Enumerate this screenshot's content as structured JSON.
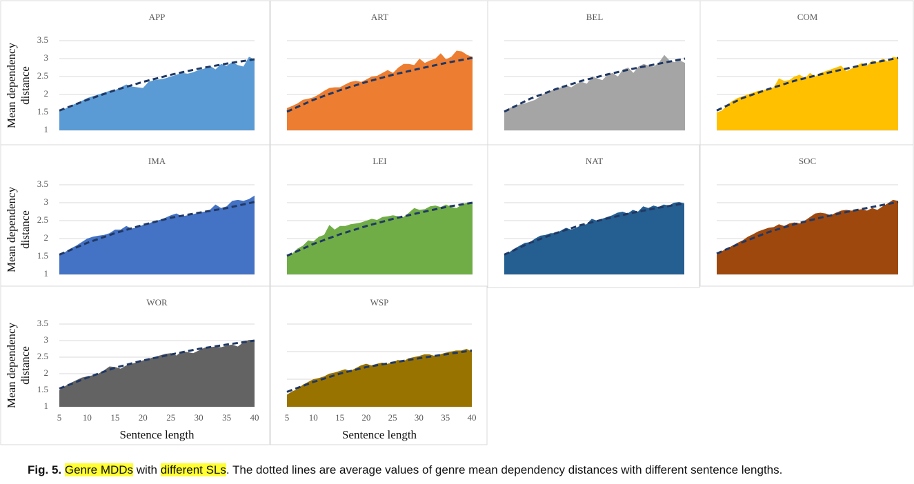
{
  "chart_data": [
    {
      "type": "area",
      "title": "APP",
      "ylabel": "Mean dependency distance",
      "ytick_labels": true,
      "xlim": [
        5,
        40
      ],
      "ylim": [
        1,
        3.5
      ],
      "yticks": [
        1,
        1.5,
        2,
        2.5,
        3,
        3.5
      ],
      "x": [
        5,
        6,
        7,
        8,
        9,
        10,
        11,
        12,
        13,
        14,
        15,
        16,
        17,
        18,
        19,
        20,
        21,
        22,
        23,
        24,
        25,
        26,
        27,
        28,
        29,
        30,
        31,
        32,
        33,
        34,
        35,
        36,
        37,
        38,
        39,
        40
      ],
      "series": [
        {
          "color": "#5b9bd5",
          "values": [
            1.55,
            1.6,
            1.68,
            1.75,
            1.82,
            1.9,
            1.95,
            2.0,
            2.05,
            2.1,
            2.12,
            2.2,
            2.28,
            2.22,
            2.2,
            2.18,
            2.35,
            2.4,
            2.42,
            2.45,
            2.5,
            2.55,
            2.6,
            2.58,
            2.62,
            2.68,
            2.72,
            2.8,
            2.7,
            2.85,
            2.8,
            2.9,
            2.82,
            2.78,
            3.05,
            2.98
          ]
        },
        {
          "color": "#203864",
          "dashed": true,
          "x": [
            5,
            10,
            15,
            20,
            25,
            30,
            35,
            40
          ],
          "values": [
            1.55,
            1.85,
            2.12,
            2.35,
            2.55,
            2.72,
            2.86,
            2.98
          ]
        }
      ]
    },
    {
      "type": "area",
      "title": "ART",
      "ytick_labels": false,
      "xlim": [
        5,
        40
      ],
      "ylim": [
        1,
        3.5
      ],
      "yticks": [
        1,
        1.5,
        2,
        2.5,
        3,
        3.5
      ],
      "x": [
        5,
        6,
        7,
        8,
        9,
        10,
        11,
        12,
        13,
        14,
        15,
        16,
        17,
        18,
        19,
        20,
        21,
        22,
        23,
        24,
        25,
        26,
        27,
        28,
        29,
        30,
        31,
        32,
        33,
        34,
        35,
        36,
        37,
        38,
        39,
        40
      ],
      "series": [
        {
          "color": "#ed7d31",
          "values": [
            1.62,
            1.68,
            1.75,
            1.85,
            1.88,
            1.92,
            2.0,
            2.1,
            2.18,
            2.2,
            2.2,
            2.28,
            2.35,
            2.38,
            2.35,
            2.42,
            2.5,
            2.52,
            2.6,
            2.68,
            2.6,
            2.75,
            2.85,
            2.85,
            2.82,
            3.0,
            2.88,
            2.95,
            3.0,
            3.15,
            2.98,
            3.05,
            3.22,
            3.2,
            3.1,
            3.05
          ]
        },
        {
          "color": "#203864",
          "dashed": true,
          "x": [
            5,
            10,
            15,
            20,
            25,
            30,
            35,
            40
          ],
          "values": [
            1.52,
            1.85,
            2.12,
            2.35,
            2.55,
            2.72,
            2.88,
            3.02
          ]
        }
      ]
    },
    {
      "type": "area",
      "title": "BEL",
      "ytick_labels": false,
      "xlim": [
        5,
        40
      ],
      "ylim": [
        1,
        3.5
      ],
      "yticks": [
        1,
        1.5,
        2,
        2.5,
        3,
        3.5
      ],
      "x": [
        5,
        6,
        7,
        8,
        9,
        10,
        11,
        12,
        13,
        14,
        15,
        16,
        17,
        18,
        19,
        20,
        21,
        22,
        23,
        24,
        25,
        26,
        27,
        28,
        29,
        30,
        31,
        32,
        33,
        34,
        35,
        36,
        37,
        38,
        39,
        40
      ],
      "series": [
        {
          "color": "#a5a5a5",
          "values": [
            1.55,
            1.62,
            1.68,
            1.72,
            1.75,
            1.8,
            1.85,
            1.95,
            2.05,
            2.1,
            2.15,
            2.2,
            2.25,
            2.2,
            2.3,
            2.35,
            2.3,
            2.5,
            2.45,
            2.4,
            2.55,
            2.6,
            2.5,
            2.7,
            2.75,
            2.6,
            2.78,
            2.85,
            2.8,
            2.78,
            2.9,
            3.1,
            2.95,
            2.9,
            2.95,
            2.88
          ]
        },
        {
          "color": "#203864",
          "dashed": true,
          "x": [
            5,
            10,
            15,
            20,
            25,
            30,
            35,
            40
          ],
          "values": [
            1.52,
            1.88,
            2.15,
            2.38,
            2.56,
            2.72,
            2.86,
            3.0
          ]
        }
      ]
    },
    {
      "type": "area",
      "title": "COM",
      "ytick_labels": false,
      "xlim": [
        5,
        40
      ],
      "ylim": [
        1,
        3.5
      ],
      "yticks": [
        1,
        1.5,
        2,
        2.5,
        3,
        3.5
      ],
      "x": [
        5,
        6,
        7,
        8,
        9,
        10,
        11,
        12,
        13,
        14,
        15,
        16,
        17,
        18,
        19,
        20,
        21,
        22,
        23,
        24,
        25,
        26,
        27,
        28,
        29,
        30,
        31,
        32,
        33,
        34,
        35,
        36,
        37,
        38,
        39,
        40
      ],
      "series": [
        {
          "color": "#ffc000",
          "values": [
            1.5,
            1.55,
            1.7,
            1.82,
            1.9,
            1.95,
            2.0,
            2.05,
            2.1,
            2.12,
            2.15,
            2.2,
            2.45,
            2.38,
            2.4,
            2.5,
            2.55,
            2.45,
            2.6,
            2.5,
            2.6,
            2.65,
            2.7,
            2.75,
            2.8,
            2.65,
            2.72,
            2.8,
            2.88,
            2.8,
            2.95,
            2.9,
            3.0,
            2.92,
            3.05,
            3.02
          ]
        },
        {
          "color": "#203864",
          "dashed": true,
          "x": [
            5,
            10,
            15,
            20,
            25,
            30,
            35,
            40
          ],
          "values": [
            1.55,
            1.9,
            2.15,
            2.38,
            2.56,
            2.72,
            2.88,
            3.02
          ]
        }
      ]
    },
    {
      "type": "area",
      "title": "IMA",
      "ylabel": "Mean dependency distance",
      "ytick_labels": true,
      "xlim": [
        5,
        40
      ],
      "ylim": [
        1,
        3.5
      ],
      "yticks": [
        1,
        1.5,
        2,
        2.5,
        3,
        3.5
      ],
      "x": [
        5,
        6,
        7,
        8,
        9,
        10,
        11,
        12,
        13,
        14,
        15,
        16,
        17,
        18,
        19,
        20,
        21,
        22,
        23,
        24,
        25,
        26,
        27,
        28,
        29,
        30,
        31,
        32,
        33,
        34,
        35,
        36,
        37,
        38,
        39,
        40
      ],
      "series": [
        {
          "color": "#4472c4",
          "values": [
            1.55,
            1.62,
            1.72,
            1.8,
            1.9,
            2.0,
            2.05,
            2.08,
            2.1,
            2.15,
            2.25,
            2.25,
            2.35,
            2.28,
            2.32,
            2.38,
            2.42,
            2.48,
            2.52,
            2.58,
            2.65,
            2.7,
            2.62,
            2.65,
            2.68,
            2.72,
            2.75,
            2.8,
            2.95,
            2.85,
            2.9,
            3.05,
            3.08,
            3.05,
            3.1,
            3.2
          ]
        },
        {
          "color": "#203864",
          "dashed": true,
          "x": [
            5,
            10,
            15,
            20,
            25,
            30,
            35,
            40
          ],
          "values": [
            1.55,
            1.88,
            2.15,
            2.38,
            2.58,
            2.72,
            2.85,
            3.02
          ]
        }
      ]
    },
    {
      "type": "area",
      "title": "LEI",
      "ytick_labels": false,
      "xlim": [
        5,
        40
      ],
      "ylim": [
        1,
        3.5
      ],
      "yticks": [
        1,
        1.5,
        2,
        2.5,
        3,
        3.5
      ],
      "x": [
        5,
        6,
        7,
        8,
        9,
        10,
        11,
        12,
        13,
        14,
        15,
        16,
        17,
        18,
        19,
        20,
        21,
        22,
        23,
        24,
        25,
        26,
        27,
        28,
        29,
        30,
        31,
        32,
        33,
        34,
        35,
        36,
        37,
        38,
        39,
        40
      ],
      "series": [
        {
          "color": "#70ad47",
          "values": [
            1.5,
            1.58,
            1.72,
            1.8,
            1.95,
            1.92,
            2.05,
            2.1,
            2.38,
            2.25,
            2.35,
            2.35,
            2.4,
            2.42,
            2.45,
            2.5,
            2.55,
            2.52,
            2.6,
            2.62,
            2.65,
            2.62,
            2.6,
            2.72,
            2.85,
            2.8,
            2.82,
            2.9,
            2.92,
            2.88,
            2.95,
            2.88,
            2.85,
            2.95,
            3.0,
            2.98
          ]
        },
        {
          "color": "#203864",
          "dashed": true,
          "x": [
            5,
            10,
            15,
            20,
            25,
            30,
            35,
            40
          ],
          "values": [
            1.52,
            1.85,
            2.12,
            2.35,
            2.55,
            2.72,
            2.88,
            3.0
          ]
        }
      ]
    },
    {
      "type": "area",
      "title": "NAT",
      "ytick_labels": false,
      "xlim": [
        5,
        40
      ],
      "ylim": [
        1,
        3.5
      ],
      "yticks": [
        1,
        1.5,
        2,
        2.5,
        3,
        3.5
      ],
      "x": [
        5,
        6,
        7,
        8,
        9,
        10,
        11,
        12,
        13,
        14,
        15,
        16,
        17,
        18,
        19,
        20,
        21,
        22,
        23,
        24,
        25,
        26,
        27,
        28,
        29,
        30,
        31,
        32,
        33,
        34,
        35,
        36,
        37,
        38,
        39,
        40
      ],
      "series": [
        {
          "color": "#255e91",
          "values": [
            1.55,
            1.62,
            1.72,
            1.8,
            1.88,
            1.9,
            2.0,
            2.08,
            2.1,
            2.15,
            2.15,
            2.22,
            2.3,
            2.25,
            2.3,
            2.38,
            2.4,
            2.55,
            2.5,
            2.55,
            2.6,
            2.65,
            2.72,
            2.75,
            2.7,
            2.8,
            2.75,
            2.9,
            2.85,
            2.92,
            2.88,
            2.95,
            2.92,
            3.0,
            3.02,
            2.98
          ]
        },
        {
          "color": "#203864",
          "dashed": true,
          "x": [
            5,
            10,
            15,
            20,
            25,
            30,
            35,
            40
          ],
          "values": [
            1.55,
            1.88,
            2.15,
            2.38,
            2.56,
            2.72,
            2.86,
            2.98
          ]
        }
      ]
    },
    {
      "type": "area",
      "title": "SOC",
      "ytick_labels": false,
      "xlim": [
        5,
        40
      ],
      "ylim": [
        1,
        3.5
      ],
      "yticks": [
        1,
        1.5,
        2,
        2.5,
        3,
        3.5
      ],
      "x": [
        5,
        6,
        7,
        8,
        9,
        10,
        11,
        12,
        13,
        14,
        15,
        16,
        17,
        18,
        19,
        20,
        21,
        22,
        23,
        24,
        25,
        26,
        27,
        28,
        29,
        30,
        31,
        32,
        33,
        34,
        35,
        36,
        37,
        38,
        39,
        40
      ],
      "series": [
        {
          "color": "#9e480e",
          "values": [
            1.55,
            1.65,
            1.72,
            1.8,
            1.88,
            1.95,
            2.05,
            2.12,
            2.2,
            2.25,
            2.3,
            2.32,
            2.4,
            2.35,
            2.42,
            2.45,
            2.42,
            2.5,
            2.6,
            2.7,
            2.72,
            2.7,
            2.65,
            2.72,
            2.78,
            2.8,
            2.78,
            2.8,
            2.82,
            2.78,
            2.85,
            2.8,
            2.9,
            2.98,
            3.08,
            3.05
          ]
        },
        {
          "color": "#203864",
          "dashed": true,
          "x": [
            5,
            10,
            15,
            20,
            25,
            30,
            35,
            40
          ],
          "values": [
            1.58,
            1.9,
            2.18,
            2.4,
            2.58,
            2.74,
            2.88,
            3.02
          ]
        }
      ]
    },
    {
      "type": "area",
      "title": "WOR",
      "ylabel": "Mean dependency distance",
      "xlabel": "Sentence length",
      "ytick_labels": true,
      "xlim": [
        5,
        40
      ],
      "ylim": [
        1,
        3.5
      ],
      "yticks": [
        1,
        1.5,
        2,
        2.5,
        3,
        3.5
      ],
      "xticks": [
        5,
        10,
        15,
        20,
        25,
        30,
        35,
        40
      ],
      "x": [
        5,
        6,
        7,
        8,
        9,
        10,
        11,
        12,
        13,
        14,
        15,
        16,
        17,
        18,
        19,
        20,
        21,
        22,
        23,
        24,
        25,
        26,
        27,
        28,
        29,
        30,
        31,
        32,
        33,
        34,
        35,
        36,
        37,
        38,
        39,
        40
      ],
      "series": [
        {
          "color": "#636363",
          "values": [
            1.5,
            1.62,
            1.72,
            1.8,
            1.88,
            1.92,
            1.95,
            2.0,
            2.1,
            2.22,
            2.2,
            2.15,
            2.25,
            2.3,
            2.35,
            2.4,
            2.45,
            2.5,
            2.55,
            2.6,
            2.62,
            2.55,
            2.68,
            2.65,
            2.62,
            2.7,
            2.78,
            2.8,
            2.82,
            2.8,
            2.85,
            2.88,
            2.82,
            2.95,
            3.02,
            3.0
          ]
        },
        {
          "color": "#203864",
          "dashed": true,
          "x": [
            5,
            10,
            15,
            20,
            25,
            30,
            35,
            40
          ],
          "values": [
            1.55,
            1.88,
            2.18,
            2.4,
            2.58,
            2.75,
            2.88,
            3.0
          ]
        }
      ]
    },
    {
      "type": "area",
      "title": "WSP",
      "xlabel": "Sentence length",
      "ytick_labels": false,
      "xlim": [
        5,
        40
      ],
      "ylim": [
        1,
        2.5
      ],
      "yticks": [
        1,
        1.5,
        2,
        2.5
      ],
      "xticks": [
        5,
        10,
        15,
        20,
        25,
        30,
        35,
        40
      ],
      "x": [
        5,
        6,
        7,
        8,
        9,
        10,
        11,
        12,
        13,
        14,
        15,
        16,
        17,
        18,
        19,
        20,
        21,
        22,
        23,
        24,
        25,
        26,
        27,
        28,
        29,
        30,
        31,
        32,
        33,
        34,
        35,
        36,
        37,
        38,
        39,
        40
      ],
      "series": [
        {
          "color": "#997300",
          "values": [
            1.22,
            1.28,
            1.32,
            1.4,
            1.45,
            1.5,
            1.52,
            1.55,
            1.6,
            1.62,
            1.65,
            1.68,
            1.65,
            1.7,
            1.75,
            1.78,
            1.75,
            1.78,
            1.8,
            1.78,
            1.8,
            1.85,
            1.82,
            1.88,
            1.9,
            1.92,
            1.95,
            1.95,
            1.92,
            1.95,
            1.98,
            2.0,
            2.02,
            2.02,
            2.05,
            2.0
          ]
        },
        {
          "color": "#203864",
          "dashed": true,
          "x": [
            5,
            10,
            15,
            20,
            25,
            30,
            35,
            40
          ],
          "values": [
            1.27,
            1.45,
            1.6,
            1.72,
            1.8,
            1.88,
            1.95,
            2.02
          ]
        }
      ]
    }
  ],
  "caption": {
    "label": "Fig. 5.",
    "highlight_1": "Genre MDDs",
    "text_1": "with",
    "highlight_2": "different SLs",
    "text_2": ". The dotted lines are average values of genre mean dependency distances with different sentence lengths."
  }
}
